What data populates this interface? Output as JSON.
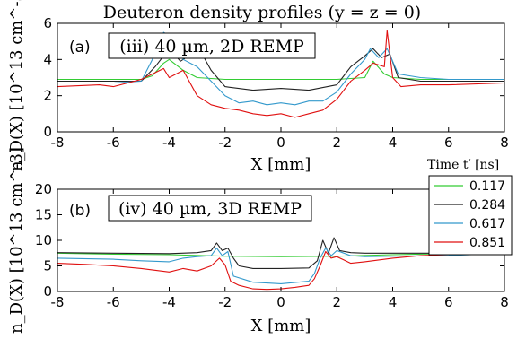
{
  "title": "Deuteron density profiles (y = z = 0)",
  "colors": {
    "0.117": "#33cc33",
    "0.284": "#222222",
    "0.617": "#3399cc",
    "0.851": "#e01010"
  },
  "legend": {
    "title": "Time t′ [ns]",
    "entries": [
      "0.117",
      "0.284",
      "0.617",
      "0.851"
    ],
    "placement": "right, between panels"
  },
  "chart_data": [
    {
      "type": "line",
      "panel": "(a)",
      "label": "(iii) 40 µm,  2D REMP",
      "xlabel": "X [mm]",
      "ylabel": "n_D(X) [10^13 cm^-3]",
      "xlim": [
        -8,
        8
      ],
      "ylim": [
        0,
        6
      ],
      "xticks": [
        -8,
        -6,
        -4,
        -2,
        0,
        2,
        4,
        6,
        8
      ],
      "yticks": [
        0,
        2,
        4,
        6
      ],
      "grid": false,
      "series": [
        {
          "name": "0.117",
          "x": [
            -8,
            -6,
            -5,
            -4.6,
            -4.2,
            -4,
            -3.5,
            -3,
            -2,
            0,
            2,
            3,
            3.3,
            3.7,
            4,
            5,
            6,
            8
          ],
          "y": [
            2.9,
            2.9,
            2.9,
            3.1,
            3.8,
            4.0,
            3.4,
            3.0,
            2.9,
            2.9,
            2.9,
            3.0,
            3.9,
            3.2,
            3.0,
            2.9,
            2.9,
            2.9
          ]
        },
        {
          "name": "0.284",
          "x": [
            -8,
            -6,
            -5,
            -4.5,
            -4,
            -3.6,
            -3.2,
            -3,
            -2.5,
            -2,
            -1,
            0,
            1,
            2,
            2.5,
            3,
            3.3,
            3.6,
            3.9,
            4.2,
            5,
            6,
            8
          ],
          "y": [
            2.8,
            2.8,
            2.8,
            3.6,
            4.6,
            3.9,
            4.3,
            4.8,
            3.4,
            2.5,
            2.3,
            2.4,
            2.3,
            2.6,
            3.6,
            4.2,
            4.6,
            4.1,
            4.3,
            3.0,
            2.8,
            2.8,
            2.8
          ]
        },
        {
          "name": "0.617",
          "x": [
            -8,
            -6,
            -5,
            -4.6,
            -4.2,
            -4,
            -3.8,
            -3.5,
            -3,
            -2.5,
            -2,
            -1.5,
            -1,
            -0.5,
            0,
            0.5,
            1,
            1.5,
            2,
            2.5,
            3,
            3.2,
            3.5,
            3.8,
            4.2,
            5,
            6,
            8
          ],
          "y": [
            2.7,
            2.7,
            2.8,
            4.0,
            5.5,
            5.3,
            5.0,
            4.0,
            3.6,
            2.8,
            2.0,
            1.6,
            1.7,
            1.5,
            1.6,
            1.5,
            1.7,
            1.7,
            2.2,
            3.2,
            4.0,
            4.6,
            4.1,
            4.6,
            3.2,
            3.0,
            2.9,
            2.9
          ]
        },
        {
          "name": "0.851",
          "x": [
            -8,
            -6.5,
            -6,
            -5,
            -4.6,
            -4.2,
            -4,
            -3.5,
            -3,
            -2.5,
            -2,
            -1.5,
            -1,
            -0.5,
            0,
            0.5,
            1,
            1.5,
            2,
            2.5,
            3,
            3.3,
            3.7,
            3.8,
            4,
            4.3,
            5,
            6,
            8
          ],
          "y": [
            2.5,
            2.6,
            2.5,
            2.9,
            3.2,
            3.5,
            3.0,
            3.4,
            2.0,
            1.5,
            1.3,
            1.2,
            1.0,
            0.9,
            1.0,
            0.8,
            1.0,
            1.2,
            1.8,
            2.8,
            3.4,
            3.8,
            3.6,
            5.6,
            3.0,
            2.5,
            2.6,
            2.6,
            2.7
          ]
        }
      ]
    },
    {
      "type": "line",
      "panel": "(b)",
      "label": "(iv) 40 µm,  3D REMP",
      "xlabel": "X [mm]",
      "ylabel": "n_D(X) [10^13 cm^-3]",
      "xlim": [
        -8,
        8
      ],
      "ylim": [
        0,
        20
      ],
      "xticks": [
        -8,
        -6,
        -4,
        -2,
        0,
        2,
        4,
        6,
        8
      ],
      "yticks": [
        0,
        5,
        10,
        15,
        20
      ],
      "grid": false,
      "series": [
        {
          "name": "0.117",
          "x": [
            -8,
            -6,
            -4,
            -2,
            0,
            2,
            4,
            6,
            8
          ],
          "y": [
            7.5,
            7.3,
            7.2,
            6.9,
            6.8,
            6.9,
            7.2,
            7.4,
            7.5
          ]
        },
        {
          "name": "0.284",
          "x": [
            -8,
            -6,
            -4,
            -3,
            -2.5,
            -2.3,
            -2.1,
            -1.9,
            -1.7,
            -1.5,
            -1,
            0,
            1,
            1.3,
            1.5,
            1.7,
            1.9,
            2.1,
            2.5,
            3,
            4,
            6,
            8
          ],
          "y": [
            7.6,
            7.5,
            7.4,
            7.6,
            8.0,
            9.5,
            8.0,
            8.5,
            6.5,
            5.0,
            4.5,
            4.5,
            4.6,
            6.0,
            10.0,
            7.5,
            10.5,
            8.0,
            7.6,
            7.5,
            7.5,
            7.5,
            7.6
          ]
        },
        {
          "name": "0.617",
          "x": [
            -8,
            -6,
            -5,
            -4,
            -3.5,
            -3,
            -2.5,
            -2.3,
            -2.1,
            -1.9,
            -1.7,
            -1,
            0,
            1,
            1.2,
            1.4,
            1.6,
            1.8,
            2,
            2.5,
            3,
            4,
            6,
            8
          ],
          "y": [
            6.5,
            6.3,
            6.0,
            5.8,
            6.5,
            6.8,
            7.0,
            8.5,
            7.0,
            7.8,
            3.0,
            1.8,
            1.5,
            2.0,
            3.5,
            6.5,
            8.5,
            7.0,
            8.0,
            7.0,
            6.8,
            6.9,
            7.0,
            7.5
          ]
        },
        {
          "name": "0.851",
          "x": [
            -8,
            -7,
            -6,
            -5,
            -4,
            -3.5,
            -3,
            -2.5,
            -2.2,
            -2,
            -1.8,
            -1.5,
            -1,
            -0.5,
            0,
            0.5,
            1,
            1.2,
            1.4,
            1.6,
            1.8,
            2,
            2.5,
            3,
            4,
            5,
            6,
            8
          ],
          "y": [
            5.5,
            5.3,
            5.0,
            4.5,
            3.8,
            4.5,
            4.0,
            5.0,
            6.5,
            5.2,
            2.0,
            1.2,
            0.5,
            0.4,
            0.5,
            0.8,
            1.2,
            2.5,
            5.0,
            7.8,
            6.5,
            6.8,
            5.5,
            5.8,
            6.5,
            7.0,
            7.2,
            7.6
          ]
        }
      ]
    }
  ]
}
